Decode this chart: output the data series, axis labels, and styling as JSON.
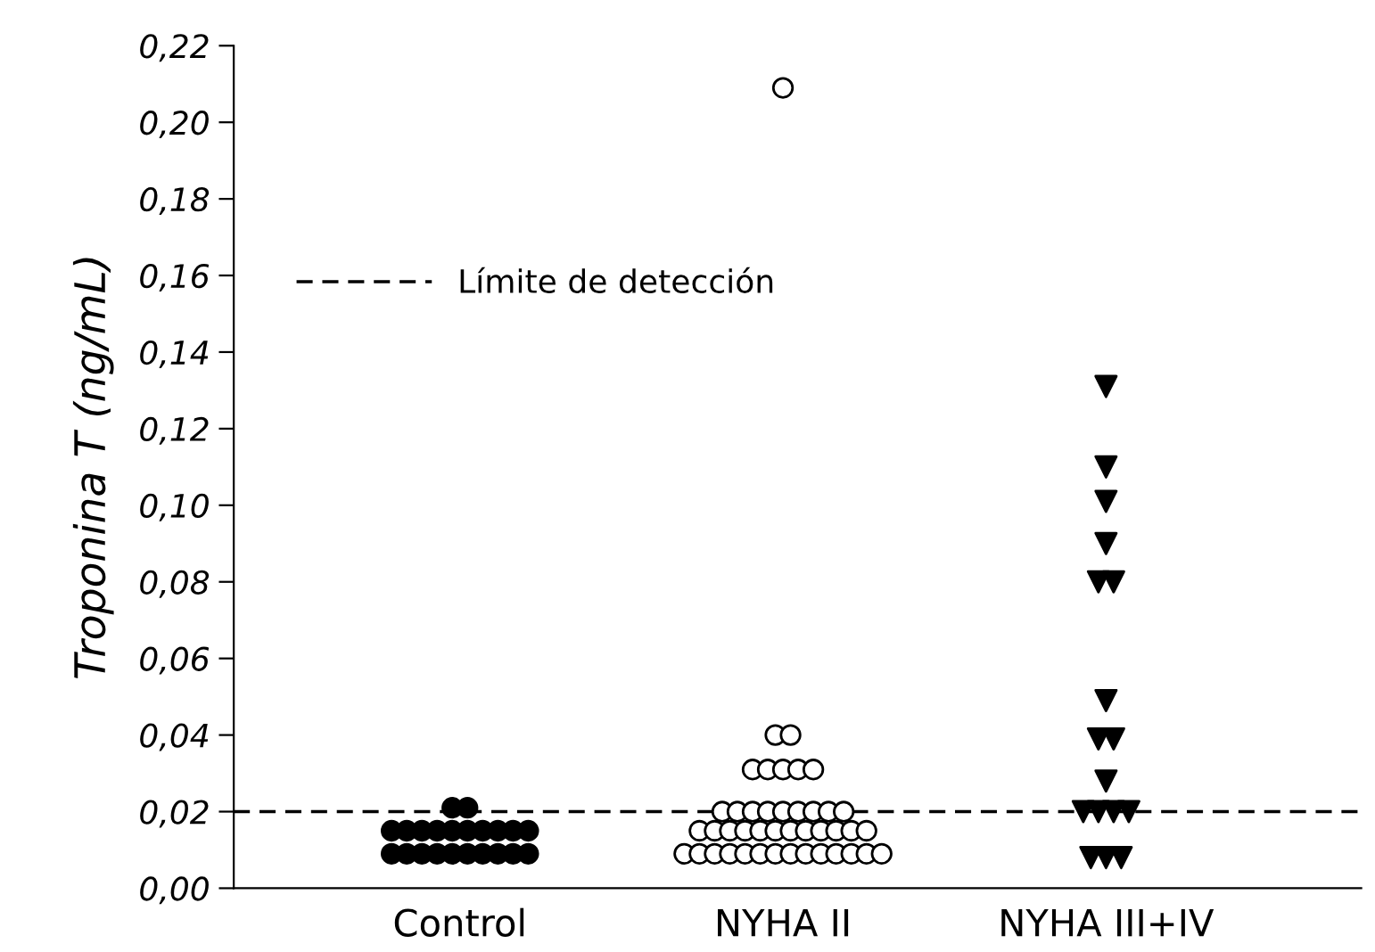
{
  "chart_data": {
    "type": "scatter",
    "ylabel": "Troponina T (ng/mL)",
    "categories": [
      "Control",
      "NYHA II",
      "NYHA III+IV"
    ],
    "series": [
      {
        "color": "#000000",
        "marker": "circle",
        "x": [
          "Control",
          "Control",
          "Control",
          "Control",
          "Control",
          "Control",
          "Control",
          "Control",
          "Control",
          "Control",
          "Control",
          "Control",
          "Control",
          "Control",
          "Control",
          "Control",
          "Control",
          "Control",
          "Control",
          "Control",
          "Control",
          "Control"
        ],
        "values": [
          0.009,
          0.009,
          0.009,
          0.009,
          0.009,
          0.009,
          0.009,
          0.009,
          0.009,
          0.009,
          0.015,
          0.015,
          0.015,
          0.015,
          0.015,
          0.015,
          0.015,
          0.015,
          0.015,
          0.015,
          0.021,
          0.021
        ]
      },
      {
        "color": "#ffffff",
        "marker": "circle",
        "x": [
          "NYHA II",
          "NYHA II",
          "NYHA II",
          "NYHA II",
          "NYHA II",
          "NYHA II",
          "NYHA II",
          "NYHA II",
          "NYHA II",
          "NYHA II",
          "NYHA II",
          "NYHA II",
          "NYHA II",
          "NYHA II",
          "NYHA II",
          "NYHA II",
          "NYHA II",
          "NYHA II",
          "NYHA II",
          "NYHA II",
          "NYHA II",
          "NYHA II",
          "NYHA II",
          "NYHA II",
          "NYHA II",
          "NYHA II",
          "NYHA II",
          "NYHA II",
          "NYHA II",
          "NYHA II",
          "NYHA II",
          "NYHA II",
          "NYHA II",
          "NYHA II",
          "NYHA II",
          "NYHA II",
          "NYHA II",
          "NYHA II",
          "NYHA II",
          "NYHA II",
          "NYHA II",
          "NYHA II",
          "NYHA II"
        ],
        "values": [
          0.009,
          0.009,
          0.009,
          0.009,
          0.009,
          0.009,
          0.009,
          0.009,
          0.009,
          0.009,
          0.009,
          0.009,
          0.009,
          0.009,
          0.015,
          0.015,
          0.015,
          0.015,
          0.015,
          0.015,
          0.015,
          0.015,
          0.015,
          0.015,
          0.015,
          0.015,
          0.02,
          0.02,
          0.02,
          0.02,
          0.02,
          0.02,
          0.02,
          0.02,
          0.02,
          0.031,
          0.031,
          0.031,
          0.031,
          0.031,
          0.04,
          0.04,
          0.209
        ]
      },
      {
        "color": "#000000",
        "marker": "triangle",
        "x": [
          "NYHA III+IV",
          "NYHA III+IV",
          "NYHA III+IV",
          "NYHA III+IV",
          "NYHA III+IV",
          "NYHA III+IV",
          "NYHA III+IV",
          "NYHA III+IV",
          "NYHA III+IV",
          "NYHA III+IV",
          "NYHA III+IV",
          "NYHA III+IV",
          "NYHA III+IV",
          "NYHA III+IV",
          "NYHA III+IV",
          "NYHA III+IV",
          "NYHA III+IV"
        ],
        "values": [
          0.131,
          0.11,
          0.101,
          0.09,
          0.08,
          0.08,
          0.049,
          0.039,
          0.039,
          0.028,
          0.02,
          0.02,
          0.02,
          0.02,
          0.008,
          0.008,
          0.008
        ]
      }
    ],
    "ylim": [
      0,
      0.22
    ],
    "yticks": [
      {
        "value": 0,
        "label": "0,00"
      },
      {
        "value": 0.02,
        "label": "0,02"
      },
      {
        "value": 0.04,
        "label": "0,04"
      },
      {
        "value": 0.06,
        "label": "0,06"
      },
      {
        "value": 0.08,
        "label": "0,08"
      },
      {
        "value": 0.1,
        "label": "0,10"
      },
      {
        "value": 0.12,
        "label": "0,12"
      },
      {
        "value": 0.14,
        "label": "0,14"
      },
      {
        "value": 0.16,
        "label": "0,16"
      },
      {
        "value": 0.18,
        "label": "0,18"
      },
      {
        "value": 0.2,
        "label": "0,20"
      },
      {
        "value": 0.22,
        "label": "0,22"
      }
    ],
    "ref_lines": [
      {
        "axis": "y",
        "value": 0.02,
        "label": "Límite de detección",
        "color": "#000000",
        "line_style": "dashed"
      }
    ],
    "legend": "top left",
    "grid": false
  }
}
